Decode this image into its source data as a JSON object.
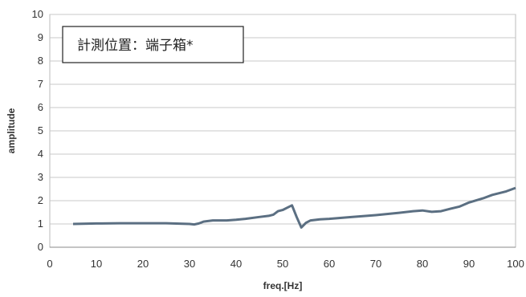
{
  "chart_data": {
    "type": "line",
    "annotation": "計測位置：端子箱*",
    "xlabel": "freq.[Hz]",
    "ylabel": "amplitude",
    "xlim": [
      0,
      100
    ],
    "ylim": [
      0,
      10
    ],
    "xticks": [
      0,
      10,
      20,
      30,
      40,
      50,
      60,
      70,
      80,
      90,
      100
    ],
    "yticks": [
      0,
      1,
      2,
      3,
      4,
      5,
      6,
      7,
      8,
      9,
      10
    ],
    "grid": "horizontal",
    "series": [
      {
        "color": "#5b6f82",
        "x": [
          5,
          10,
          15,
          20,
          25,
          30,
          31,
          32,
          33,
          35,
          38,
          40,
          42,
          45,
          47,
          48,
          49,
          50,
          51,
          52,
          53,
          54,
          55,
          56,
          58,
          60,
          65,
          70,
          75,
          78,
          80,
          82,
          84,
          86,
          88,
          90,
          93,
          95,
          98,
          100
        ],
        "y": [
          1.0,
          1.02,
          1.03,
          1.03,
          1.03,
          1.0,
          0.98,
          1.02,
          1.1,
          1.15,
          1.15,
          1.18,
          1.22,
          1.3,
          1.35,
          1.4,
          1.55,
          1.6,
          1.7,
          1.8,
          1.3,
          0.85,
          1.05,
          1.15,
          1.2,
          1.22,
          1.3,
          1.38,
          1.48,
          1.55,
          1.58,
          1.52,
          1.55,
          1.65,
          1.75,
          1.92,
          2.1,
          2.25,
          2.4,
          2.55
        ]
      }
    ]
  }
}
